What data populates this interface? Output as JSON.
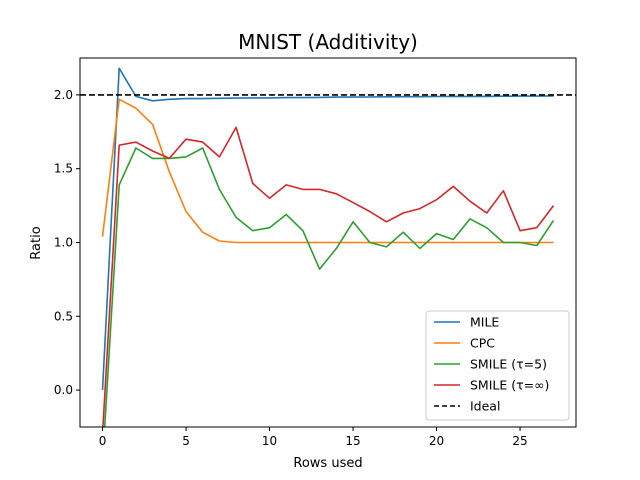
{
  "chart_data": {
    "type": "line",
    "title": "MNIST (Additivity)",
    "xlabel": "Rows used",
    "ylabel": "Ratio",
    "xlim": [
      -1.35,
      28.35
    ],
    "ylim": [
      -0.25,
      2.25
    ],
    "xticks": [
      0,
      5,
      10,
      15,
      20,
      25
    ],
    "xtick_labels": [
      "0",
      "5",
      "10",
      "15",
      "20",
      "25"
    ],
    "yticks": [
      0.0,
      0.5,
      1.0,
      1.5,
      2.0
    ],
    "ytick_labels": [
      "0.0",
      "0.5",
      "1.0",
      "1.5",
      "2.0"
    ],
    "grid": false,
    "legend_position": "lower right",
    "x": [
      0,
      1,
      2,
      3,
      4,
      5,
      6,
      7,
      8,
      9,
      10,
      11,
      12,
      13,
      14,
      15,
      16,
      17,
      18,
      19,
      20,
      21,
      22,
      23,
      24,
      25,
      26,
      27
    ],
    "series": [
      {
        "name": "MILE",
        "color": "#1f77b4",
        "style": "solid",
        "values": [
          0.0,
          2.18,
          1.99,
          1.96,
          1.97,
          1.975,
          1.975,
          1.977,
          1.978,
          1.98,
          1.98,
          1.982,
          1.982,
          1.983,
          1.985,
          1.985,
          1.986,
          1.987,
          1.988,
          1.988,
          1.989,
          1.99,
          1.99,
          1.99,
          1.991,
          1.992,
          1.992,
          1.993
        ]
      },
      {
        "name": "CPC",
        "color": "#ff7f0e",
        "style": "solid",
        "values": [
          1.04,
          1.97,
          1.91,
          1.8,
          1.48,
          1.21,
          1.07,
          1.01,
          1.0,
          1.0,
          1.0,
          1.0,
          1.0,
          1.0,
          1.0,
          1.0,
          1.0,
          1.0,
          1.0,
          1.0,
          1.0,
          1.0,
          1.0,
          1.0,
          1.0,
          1.0,
          1.0,
          1.0
        ]
      },
      {
        "name": "SMILE (τ=5)",
        "color": "#2ca02c",
        "style": "solid",
        "values": [
          -0.5,
          1.39,
          1.64,
          1.57,
          1.57,
          1.58,
          1.64,
          1.36,
          1.17,
          1.08,
          1.1,
          1.19,
          1.08,
          0.82,
          0.96,
          1.14,
          1.0,
          0.97,
          1.07,
          0.96,
          1.06,
          1.02,
          1.16,
          1.1,
          1.0,
          1.0,
          0.98,
          1.15
        ]
      },
      {
        "name": "SMILE (τ=∞)",
        "color": "#d62728",
        "style": "solid",
        "values": [
          -0.3,
          1.66,
          1.68,
          1.62,
          1.57,
          1.7,
          1.68,
          1.58,
          1.78,
          1.4,
          1.3,
          1.39,
          1.36,
          1.36,
          1.33,
          1.27,
          1.21,
          1.14,
          1.2,
          1.23,
          1.29,
          1.38,
          1.28,
          1.2,
          1.35,
          1.08,
          1.1,
          1.25
        ]
      }
    ],
    "reference_line": {
      "name": "Ideal",
      "y": 2.0,
      "color": "#000000",
      "style": "dashed"
    }
  }
}
